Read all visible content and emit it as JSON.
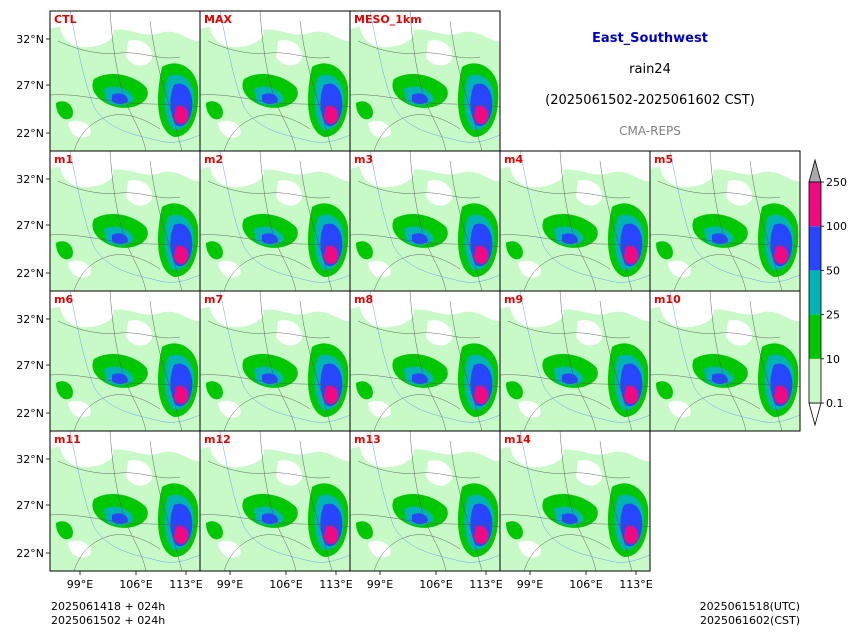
{
  "header": {
    "region": "East_Southwest",
    "variable": "rain24",
    "period": "(2025061502-2025061602 CST)",
    "model": "CMA-REPS"
  },
  "panels": [
    {
      "label": "CTL",
      "row": 0,
      "col": 0
    },
    {
      "label": "MAX",
      "row": 0,
      "col": 1
    },
    {
      "label": "MESO_1km",
      "row": 0,
      "col": 2
    },
    {
      "label": "m1",
      "row": 1,
      "col": 0
    },
    {
      "label": "m2",
      "row": 1,
      "col": 1
    },
    {
      "label": "m3",
      "row": 1,
      "col": 2
    },
    {
      "label": "m4",
      "row": 1,
      "col": 3
    },
    {
      "label": "m5",
      "row": 1,
      "col": 4
    },
    {
      "label": "m6",
      "row": 2,
      "col": 0
    },
    {
      "label": "m7",
      "row": 2,
      "col": 1
    },
    {
      "label": "m8",
      "row": 2,
      "col": 2
    },
    {
      "label": "m9",
      "row": 2,
      "col": 3
    },
    {
      "label": "m10",
      "row": 2,
      "col": 4
    },
    {
      "label": "m11",
      "row": 3,
      "col": 0
    },
    {
      "label": "m12",
      "row": 3,
      "col": 1
    },
    {
      "label": "m13",
      "row": 3,
      "col": 2
    },
    {
      "label": "m14",
      "row": 3,
      "col": 3
    }
  ],
  "axes": {
    "lat_labels": [
      "32°N",
      "27°N",
      "22°N"
    ],
    "lon_labels": [
      "99°E",
      "106°E",
      "113°E"
    ]
  },
  "colorbar": {
    "labels": [
      "0.1",
      "10",
      "25",
      "50",
      "100",
      "250"
    ],
    "colors": [
      "#c8fac8",
      "#00c800",
      "#00b4b4",
      "#2846ff",
      "#f00a82"
    ],
    "over_color": "#a9a9a9",
    "under_color": "#ffffff"
  },
  "rain_colors": {
    "light": "#c8fac8",
    "moderate": "#00c800",
    "heavy": "#00b4b4",
    "very_heavy": "#2846ff",
    "extreme": "#f00a82"
  },
  "footer": {
    "left_line1": "2025061418  +  024h",
    "left_line2": "2025061502  +  024h",
    "right_line1": "2025061518(UTC)",
    "right_line2": "2025061602(CST)"
  }
}
